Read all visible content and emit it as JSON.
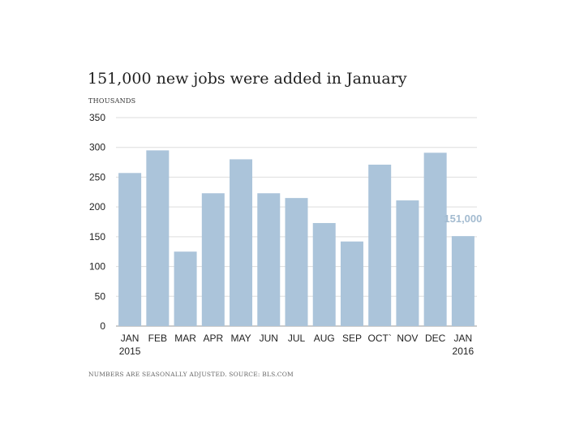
{
  "title": "151,000 new jobs were added in January",
  "unit_label": "THOUSANDS",
  "footnote": "NUMBERS ARE SEASONALLY ADJUSTED. SOURCE: BLS.COM",
  "colors": {
    "bar": "#abc4da",
    "label": "#a3bbd0",
    "grid": "#dddddd",
    "axis": "#999999"
  },
  "chart_data": {
    "type": "bar",
    "title": "151,000 new jobs were added in January",
    "ylabel": "THOUSANDS",
    "xlabel": "",
    "categories": [
      [
        "JAN",
        "2015"
      ],
      [
        "FEB",
        ""
      ],
      [
        "MAR",
        ""
      ],
      [
        "APR",
        ""
      ],
      [
        "MAY",
        ""
      ],
      [
        "JUN",
        ""
      ],
      [
        "JUL",
        ""
      ],
      [
        "AUG",
        ""
      ],
      [
        "SEP",
        ""
      ],
      [
        "OCT`",
        ""
      ],
      [
        "NOV",
        ""
      ],
      [
        "DEC",
        ""
      ],
      [
        "JAN",
        "2016"
      ]
    ],
    "values": [
      257,
      295,
      125,
      223,
      280,
      223,
      215,
      173,
      142,
      271,
      211,
      291,
      151
    ],
    "ylim": [
      0,
      350
    ],
    "yticks": [
      0,
      50,
      100,
      150,
      200,
      250,
      300,
      350
    ],
    "grid": true,
    "annotations": [
      {
        "index": 12,
        "text": "151,000"
      }
    ]
  }
}
